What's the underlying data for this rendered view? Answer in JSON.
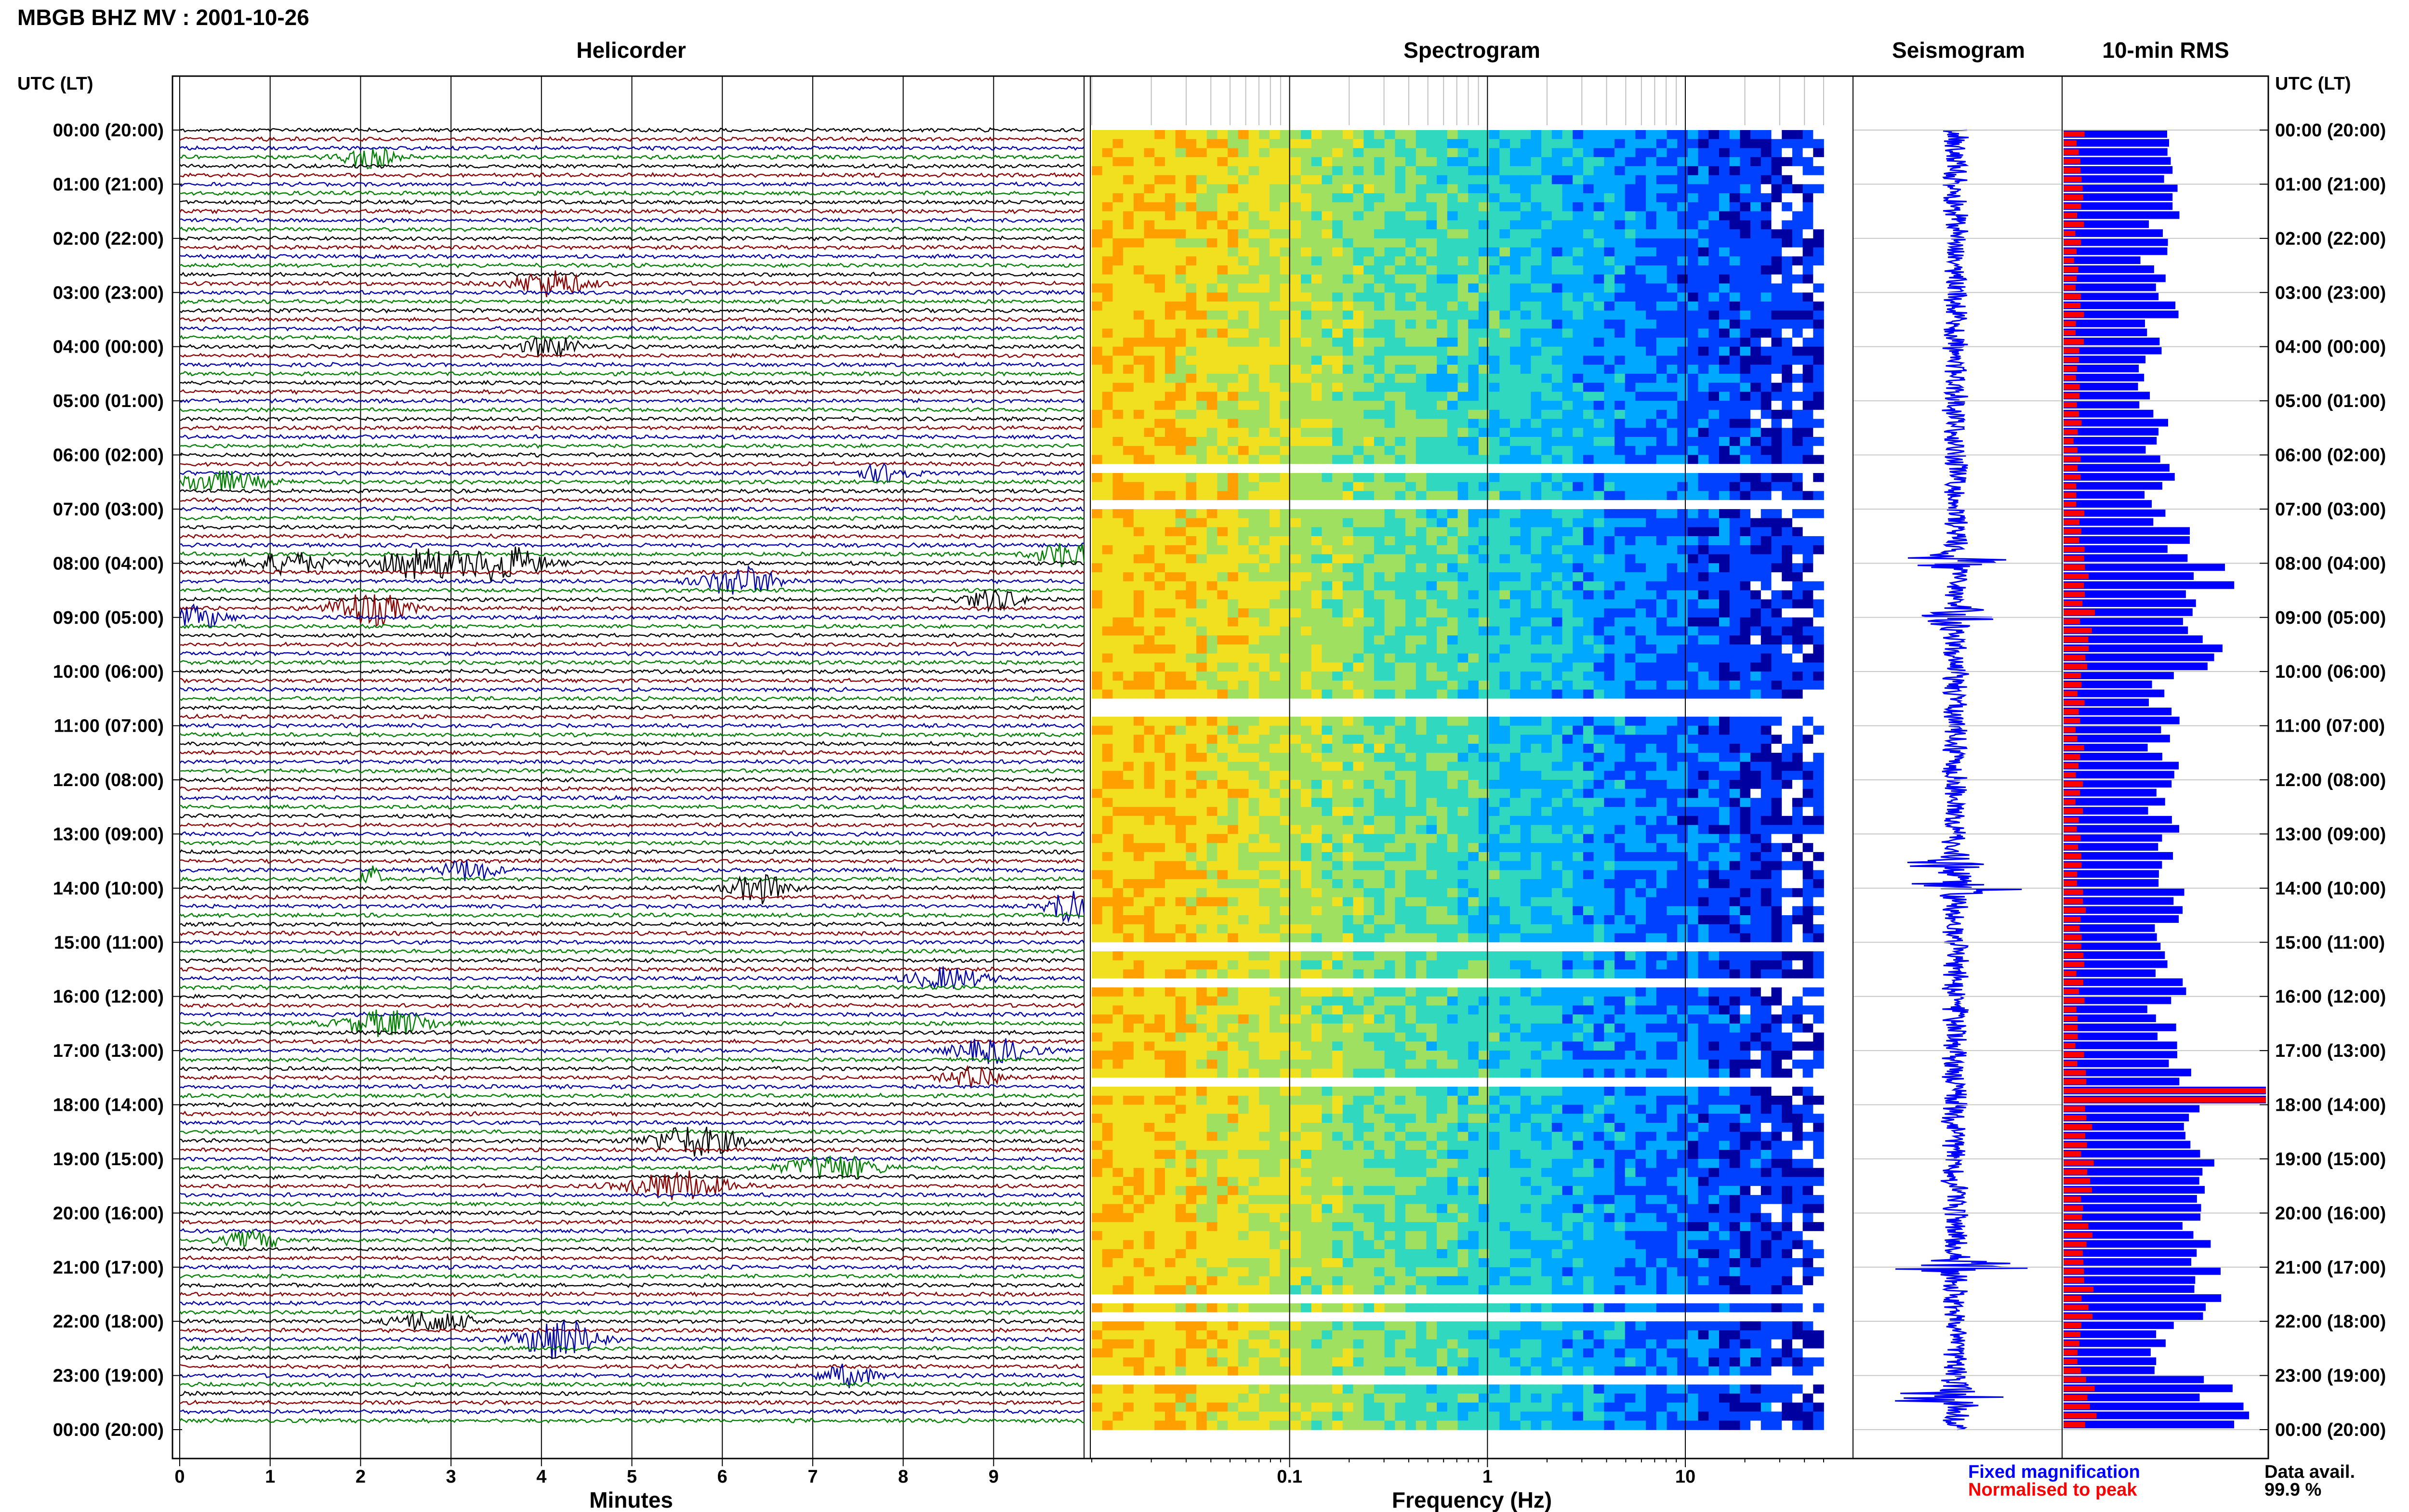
{
  "header": {
    "title": "MBGB BHZ MV : 2001-10-26"
  },
  "panels": {
    "helicorder": "Helicorder",
    "spectrogram": "Spectrogram",
    "seismogram": "Seismogram",
    "rms": "10-min RMS"
  },
  "axes": {
    "left_header": "UTC (LT)",
    "right_header": "UTC (LT)",
    "x_helicorder": "Minutes",
    "x_spectrogram": "Frequency (Hz)"
  },
  "legend": {
    "fixed": "Fixed magnification",
    "normalised": "Normalised to peak",
    "avail_label": "Data avail.",
    "avail_value": "99.9 %"
  },
  "colors": {
    "trace_cycle": [
      "#000000",
      "#8b0000",
      "#0000aa",
      "#008000"
    ],
    "rms_fixed": "#0000ff",
    "rms_norm": "#ff0000",
    "legend_fixed": "#0000ff",
    "legend_norm": "#ff0000"
  },
  "chart_data": [
    {
      "type": "line",
      "name": "helicorder",
      "title": "Helicorder",
      "xlabel": "Minutes",
      "xlim": [
        0,
        10
      ],
      "x_ticks": [
        "0",
        "1",
        "2",
        "3",
        "4",
        "5",
        "6",
        "7",
        "8",
        "9"
      ],
      "hour_labels": [
        "00:00 (20:00)",
        "01:00 (21:00)",
        "02:00 (22:00)",
        "03:00 (23:00)",
        "04:00 (00:00)",
        "05:00 (01:00)",
        "06:00 (02:00)",
        "07:00 (03:00)",
        "08:00 (04:00)",
        "09:00 (05:00)",
        "10:00 (06:00)",
        "11:00 (07:00)",
        "12:00 (08:00)",
        "13:00 (09:00)",
        "14:00 (10:00)",
        "15:00 (11:00)",
        "16:00 (12:00)",
        "17:00 (13:00)",
        "18:00 (14:00)",
        "19:00 (15:00)",
        "20:00 (16:00)",
        "21:00 (17:00)",
        "22:00 (18:00)",
        "23:00 (19:00)",
        "00:00 (20:00)"
      ],
      "rows": 144,
      "rows_per_hour": 6,
      "events": [
        {
          "row": 3,
          "min": 2.1,
          "amp": 2.5,
          "w": 0.3
        },
        {
          "row": 17,
          "min": 4.1,
          "amp": 3,
          "w": 0.4
        },
        {
          "row": 24,
          "min": 4.1,
          "amp": 2.5,
          "w": 0.3
        },
        {
          "row": 38,
          "min": 7.8,
          "amp": 2,
          "w": 0.3
        },
        {
          "row": 39,
          "min": 0.4,
          "amp": 2.5,
          "w": 0.5
        },
        {
          "row": 48,
          "min": 1.2,
          "amp": 2.5,
          "w": 0.4
        },
        {
          "row": 48,
          "min": 2.7,
          "amp": 3.5,
          "w": 0.5
        },
        {
          "row": 48,
          "min": 3.6,
          "amp": 4,
          "w": 0.4
        },
        {
          "row": 47,
          "min": 9.8,
          "amp": 3,
          "w": 0.3
        },
        {
          "row": 50,
          "min": 6.2,
          "amp": 3.5,
          "w": 0.4
        },
        {
          "row": 53,
          "min": 2.1,
          "amp": 4,
          "w": 0.4
        },
        {
          "row": 54,
          "min": 0.2,
          "amp": 2.5,
          "w": 0.3
        },
        {
          "row": 52,
          "min": 9,
          "amp": 2.5,
          "w": 0.3
        },
        {
          "row": 82,
          "min": 3.2,
          "amp": 2.5,
          "w": 0.3
        },
        {
          "row": 83,
          "min": 2.1,
          "amp": 4,
          "w": 0.1
        },
        {
          "row": 84,
          "min": 6.4,
          "amp": 3.5,
          "w": 0.3
        },
        {
          "row": 86,
          "min": 9.8,
          "amp": 4,
          "w": 0.2
        },
        {
          "row": 94,
          "min": 8.5,
          "amp": 2.5,
          "w": 0.4
        },
        {
          "row": 99,
          "min": 2.3,
          "amp": 3,
          "w": 0.5
        },
        {
          "row": 102,
          "min": 9,
          "amp": 3,
          "w": 0.4
        },
        {
          "row": 105,
          "min": 8.8,
          "amp": 2.5,
          "w": 0.3
        },
        {
          "row": 112,
          "min": 5.7,
          "amp": 3.5,
          "w": 0.5
        },
        {
          "row": 115,
          "min": 7.2,
          "amp": 3,
          "w": 0.5
        },
        {
          "row": 117,
          "min": 5.5,
          "amp": 3.5,
          "w": 0.5
        },
        {
          "row": 123,
          "min": 0.8,
          "amp": 2,
          "w": 0.3
        },
        {
          "row": 132,
          "min": 2.8,
          "amp": 2.5,
          "w": 0.4
        },
        {
          "row": 134,
          "min": 4.2,
          "amp": 5,
          "w": 0.4
        },
        {
          "row": 138,
          "min": 7.4,
          "amp": 2.5,
          "w": 0.3
        }
      ]
    },
    {
      "type": "heatmap",
      "name": "spectrogram",
      "title": "Spectrogram",
      "xlabel": "Frequency (Hz)",
      "x_scale": "log",
      "xlim": [
        0.01,
        50
      ],
      "x_ticks": [
        "0.1",
        "1",
        "10"
      ],
      "colormap": [
        "#0000a0",
        "#0040ff",
        "#00a8ff",
        "#30d8c0",
        "#a0e060",
        "#f0e020",
        "#ffa000"
      ],
      "gaps_hours": [
        6.1,
        6.8,
        10.45,
        10.6,
        15.05,
        15.65,
        17.45,
        21.45,
        21.8,
        22.95
      ]
    },
    {
      "type": "line",
      "name": "seismogram",
      "title": "Seismogram",
      "color": "#0000ff",
      "bursts_hours": [
        8.0,
        9.0,
        13.55,
        14.0,
        21.0,
        23.4
      ]
    },
    {
      "type": "bar",
      "name": "rms",
      "title": "10-min RMS",
      "orientation": "horizontal",
      "series": [
        {
          "name": "Fixed magnification",
          "color": "#0000ff"
        },
        {
          "name": "Normalised to peak",
          "color": "#ff0000"
        }
      ],
      "peak_hour": 17.75,
      "hourly_fixed": [
        0.55,
        0.5,
        0.45,
        0.5,
        0.45,
        0.45,
        0.5,
        0.55,
        0.75,
        0.7,
        0.5,
        0.5,
        0.5,
        0.5,
        0.55,
        0.55,
        0.5,
        0.55,
        0.7,
        0.75,
        0.7,
        0.75,
        0.5,
        0.8
      ],
      "hourly_norm": [
        0.08,
        0.08,
        0.07,
        0.08,
        0.07,
        0.07,
        0.08,
        0.08,
        0.12,
        0.11,
        0.08,
        0.08,
        0.08,
        0.08,
        0.09,
        0.09,
        0.08,
        0.09,
        0.11,
        0.12,
        0.11,
        0.12,
        0.08,
        0.13
      ]
    }
  ]
}
